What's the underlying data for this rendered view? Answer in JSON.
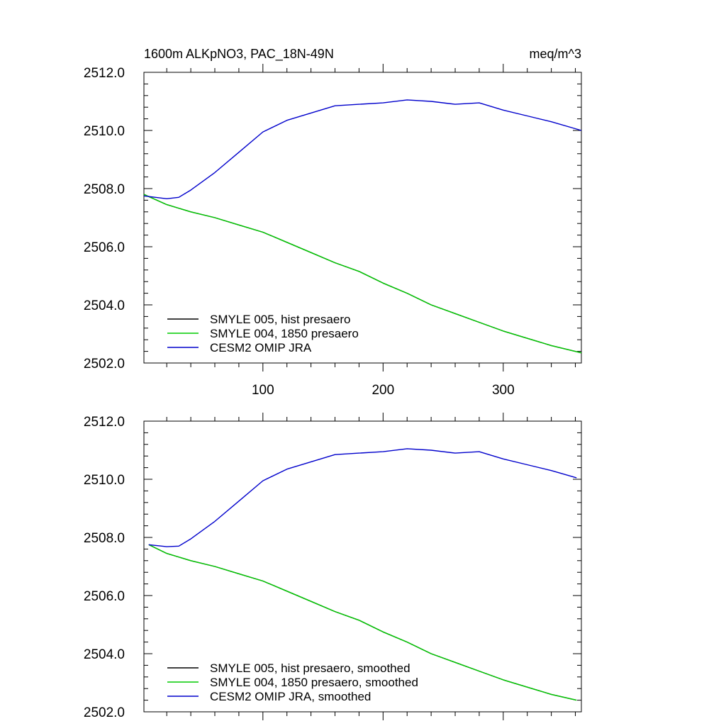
{
  "chart_data": [
    {
      "type": "line",
      "title_left": "1600m ALKpNO3, PAC_18N-49N",
      "title_right": "meq/m^3",
      "xlim": [
        1,
        365
      ],
      "ylim": [
        2502.0,
        2512.0
      ],
      "x_ticks": [
        100,
        200,
        300
      ],
      "x_tick_labels": [
        "100",
        "200",
        "300"
      ],
      "y_ticks": [
        2502.0,
        2504.0,
        2506.0,
        2508.0,
        2510.0,
        2512.0
      ],
      "y_tick_labels": [
        "2502.0",
        "2504.0",
        "2506.0",
        "2508.0",
        "2510.0",
        "2512.0"
      ],
      "grid": false,
      "legend_position": "bottom-left",
      "series": [
        {
          "name": "SMYLE 005, hist presaero",
          "color": "#000000",
          "x": [
            1,
            20,
            40,
            60,
            80,
            100,
            120,
            140,
            160,
            180,
            200,
            220,
            240,
            260,
            280,
            300,
            320,
            340,
            365
          ],
          "y": [
            2507.8,
            2507.45,
            2507.2,
            2507.0,
            2506.75,
            2506.5,
            2506.15,
            2505.8,
            2505.45,
            2505.15,
            2504.75,
            2504.4,
            2504.0,
            2503.7,
            2503.4,
            2503.1,
            2502.85,
            2502.6,
            2502.35
          ]
        },
        {
          "name": "SMYLE 004, 1850 presaero",
          "color": "#00cc00",
          "x": [
            1,
            20,
            40,
            60,
            80,
            100,
            120,
            140,
            160,
            180,
            200,
            220,
            240,
            260,
            280,
            300,
            320,
            340,
            365
          ],
          "y": [
            2507.8,
            2507.45,
            2507.2,
            2507.0,
            2506.75,
            2506.5,
            2506.15,
            2505.8,
            2505.45,
            2505.15,
            2504.75,
            2504.4,
            2504.0,
            2503.7,
            2503.4,
            2503.1,
            2502.85,
            2502.6,
            2502.35
          ]
        },
        {
          "name": "CESM2 OMIP JRA",
          "color": "#0000cc",
          "x": [
            1,
            20,
            30,
            40,
            60,
            80,
            100,
            120,
            140,
            160,
            180,
            200,
            220,
            240,
            260,
            280,
            300,
            320,
            340,
            365
          ],
          "y": [
            2507.75,
            2507.65,
            2507.7,
            2507.95,
            2508.55,
            2509.25,
            2509.95,
            2510.35,
            2510.6,
            2510.85,
            2510.9,
            2510.95,
            2511.05,
            2511.0,
            2510.9,
            2510.95,
            2510.7,
            2510.5,
            2510.3,
            2510.0
          ]
        }
      ]
    },
    {
      "type": "line",
      "xlim": [
        1,
        365
      ],
      "ylim": [
        2502.0,
        2512.0
      ],
      "x_ticks": [
        100,
        200,
        300
      ],
      "y_ticks": [
        2502.0,
        2504.0,
        2506.0,
        2508.0,
        2510.0,
        2512.0
      ],
      "y_tick_labels": [
        "2502.0",
        "2504.0",
        "2506.0",
        "2508.0",
        "2510.0",
        "2512.0"
      ],
      "grid": false,
      "legend_position": "bottom-left",
      "series": [
        {
          "name": "SMYLE 005, hist presaero, smoothed",
          "color": "#000000",
          "x": [
            5,
            20,
            40,
            60,
            80,
            100,
            120,
            140,
            160,
            180,
            200,
            220,
            240,
            260,
            280,
            300,
            320,
            340,
            361
          ],
          "y": [
            2507.75,
            2507.45,
            2507.2,
            2507.0,
            2506.75,
            2506.5,
            2506.15,
            2505.8,
            2505.45,
            2505.15,
            2504.75,
            2504.4,
            2504.0,
            2503.7,
            2503.4,
            2503.1,
            2502.85,
            2502.6,
            2502.4
          ]
        },
        {
          "name": "SMYLE 004, 1850 presaero, smoothed",
          "color": "#00cc00",
          "x": [
            5,
            20,
            40,
            60,
            80,
            100,
            120,
            140,
            160,
            180,
            200,
            220,
            240,
            260,
            280,
            300,
            320,
            340,
            361
          ],
          "y": [
            2507.75,
            2507.45,
            2507.2,
            2507.0,
            2506.75,
            2506.5,
            2506.15,
            2505.8,
            2505.45,
            2505.15,
            2504.75,
            2504.4,
            2504.0,
            2503.7,
            2503.4,
            2503.1,
            2502.85,
            2502.6,
            2502.4
          ]
        },
        {
          "name": "CESM2 OMIP JRA, smoothed",
          "color": "#0000cc",
          "x": [
            5,
            20,
            30,
            40,
            60,
            80,
            100,
            120,
            140,
            160,
            180,
            200,
            220,
            240,
            260,
            280,
            300,
            320,
            340,
            361
          ],
          "y": [
            2507.75,
            2507.68,
            2507.7,
            2507.95,
            2508.55,
            2509.25,
            2509.95,
            2510.35,
            2510.6,
            2510.85,
            2510.9,
            2510.95,
            2511.05,
            2511.0,
            2510.9,
            2510.95,
            2510.7,
            2510.5,
            2510.3,
            2510.05
          ]
        }
      ]
    }
  ]
}
